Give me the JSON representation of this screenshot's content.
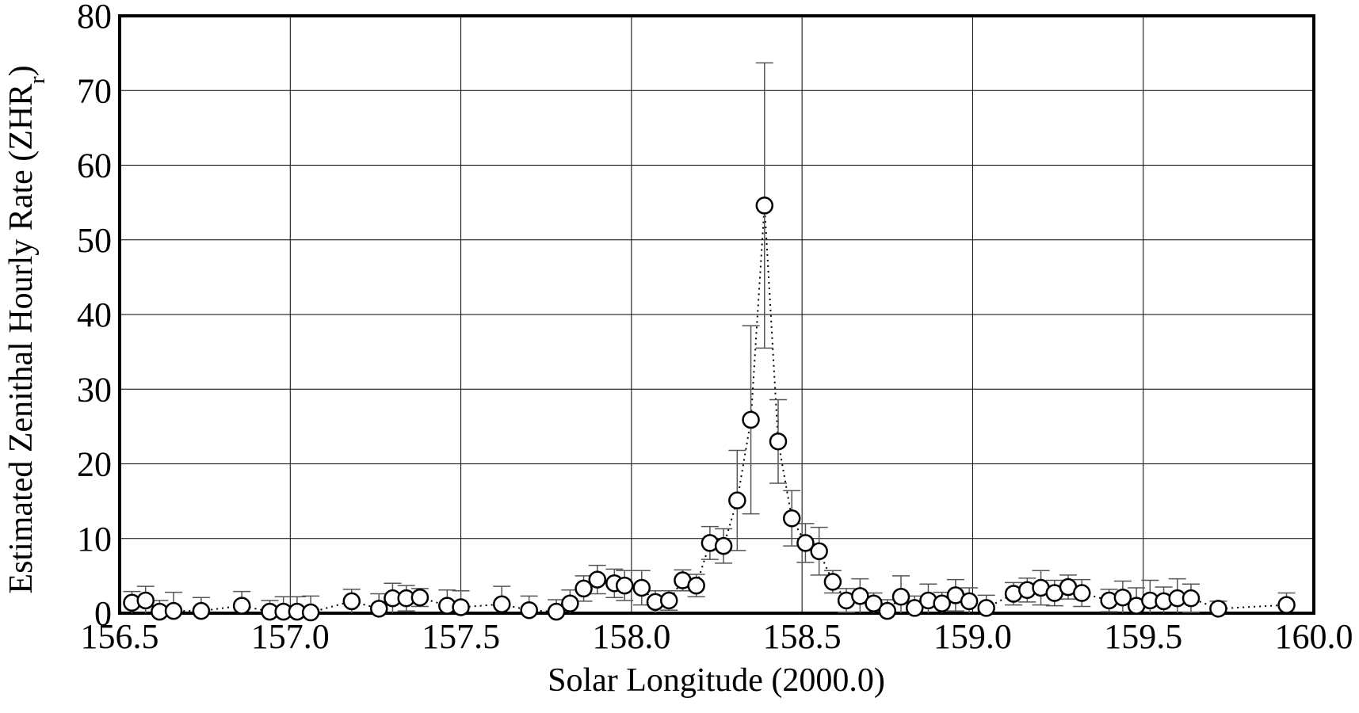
{
  "chart_data": {
    "type": "scatter",
    "xlabel": "Solar Longitude (2000.0)",
    "ylabel": "Estimated Zenithal Hourly Rate (ZHR",
    "ylabel_sub": "r",
    "ylabel_end": ")",
    "xlim": [
      156.5,
      160.0
    ],
    "ylim": [
      0,
      80
    ],
    "xticks": [
      156.5,
      {
        "value": 157,
        "label": "157.0"
      },
      157.5,
      {
        "value": 158,
        "label": "158.0"
      },
      158.5,
      {
        "value": 159,
        "label": "159.0"
      },
      159.5,
      {
        "value": 160,
        "label": "160.0"
      }
    ],
    "yticks": [
      0,
      10,
      20,
      30,
      40,
      50,
      60,
      70,
      80
    ],
    "grid": true,
    "x": [
      156.536,
      156.576,
      156.617,
      156.658,
      156.739,
      156.858,
      156.94,
      156.98,
      157.02,
      157.06,
      157.18,
      157.26,
      157.3,
      157.34,
      157.38,
      157.46,
      157.5,
      157.62,
      157.7,
      157.78,
      157.82,
      157.86,
      157.9,
      157.95,
      157.98,
      158.03,
      158.07,
      158.11,
      158.15,
      158.19,
      158.23,
      158.27,
      158.31,
      158.35,
      158.39,
      158.43,
      158.47,
      158.51,
      158.55,
      158.59,
      158.63,
      158.67,
      158.71,
      158.75,
      158.79,
      158.83,
      158.87,
      158.91,
      158.95,
      158.99,
      159.04,
      159.12,
      159.16,
      159.2,
      159.24,
      159.28,
      159.32,
      159.4,
      159.44,
      159.48,
      159.52,
      159.56,
      159.6,
      159.64,
      159.72,
      159.92
    ],
    "values": [
      1.4,
      1.7,
      0.2,
      0.3,
      0.3,
      1.0,
      0.2,
      0.2,
      0.2,
      0.1,
      1.6,
      0.6,
      2.0,
      2.0,
      2.1,
      1.0,
      0.8,
      1.2,
      0.4,
      0.2,
      1.3,
      3.3,
      4.5,
      4.0,
      3.7,
      3.4,
      1.5,
      1.7,
      4.4,
      3.7,
      9.4,
      9.0,
      15.1,
      25.9,
      54.6,
      23.0,
      12.7,
      9.4,
      8.3,
      4.2,
      1.7,
      2.3,
      1.3,
      0.3,
      2.2,
      0.7,
      1.7,
      1.3,
      2.4,
      1.6,
      0.7,
      2.6,
      3.1,
      3.4,
      2.7,
      3.5,
      2.7,
      1.7,
      2.1,
      1.0,
      1.7,
      1.6,
      2.0,
      2.0,
      0.6,
      1.1
    ],
    "errors": [
      1.5,
      1.9,
      1.5,
      2.5,
      1.8,
      1.9,
      1.5,
      2.0,
      2.0,
      2.2,
      1.6,
      2.0,
      2.0,
      1.7,
      1.2,
      2.1,
      2.2,
      2.4,
      1.9,
      1.6,
      1.8,
      1.7,
      1.9,
      1.9,
      2.0,
      2.3,
      1.5,
      1.3,
      1.4,
      1.5,
      2.2,
      2.3,
      6.7,
      12.6,
      19.1,
      5.6,
      3.7,
      2.6,
      3.2,
      1.5,
      1.6,
      2.3,
      1.4,
      1.5,
      2.8,
      1.6,
      2.2,
      1.5,
      2.1,
      1.8,
      1.7,
      1.5,
      1.6,
      2.3,
      1.7,
      1.6,
      1.8,
      1.5,
      2.2,
      2.4,
      2.7,
      1.9,
      2.6,
      1.9,
      1.0,
      1.6
    ],
    "marker_color": "#ffffff",
    "line_color": "#000000",
    "error_color": "#555555"
  }
}
